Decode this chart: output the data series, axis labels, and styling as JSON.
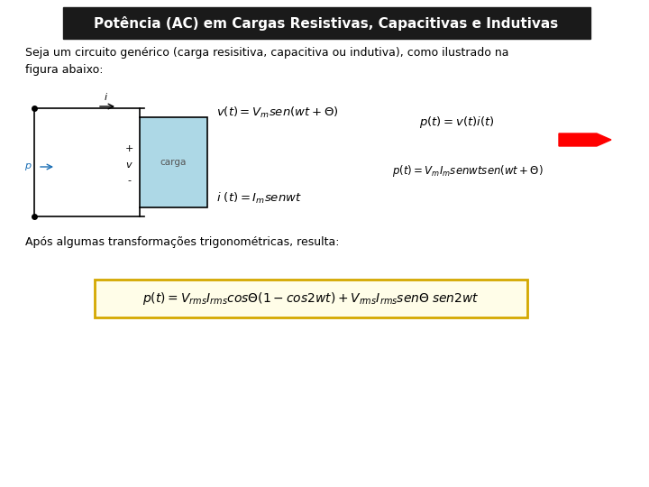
{
  "title": "Potência (AC) em Cargas Resistivas, Capacitivas e Indutivas",
  "title_bg": "#1a1a1a",
  "title_color": "#ffffff",
  "body_bg": "#ffffff",
  "text1": "Seja um circuito genérico (carga resisitiva, capacitiva ou indutiva), como ilustrado na\nfigura abaixo:",
  "text2": "Após algumas transformações trigonométricas, resulta:",
  "eq_v": "$v(t) = V_m sen(wt + \\Theta)$",
  "eq_i": "$i\\ (t) = I_m senwt$",
  "eq_p1": "$p(t) = v(t)i(t)$",
  "eq_p2": "$p(t) = V_m I_m senwtsen(wt + \\Theta)$",
  "eq_final": "$p(t)= V_{rms}I_{rms}cos\\Theta(1-cos2wt) + V_{rms}I_{rms}sen\\Theta\\; sen2wt$",
  "circuit_label": "carga",
  "font_size_title": 11,
  "font_size_body": 9,
  "font_size_eq": 9.5,
  "font_size_final_eq": 10
}
